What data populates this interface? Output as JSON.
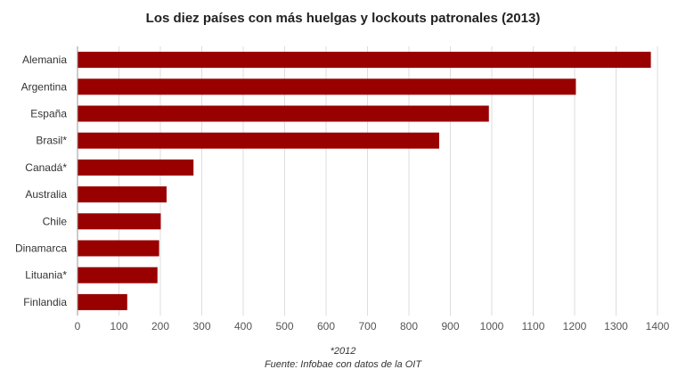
{
  "chart_data": {
    "type": "bar",
    "orientation": "horizontal",
    "title": "Los diez países con más huelgas y lockouts patronales (2013)",
    "categories": [
      "Alemania",
      "Argentina",
      "España",
      "Brasil*",
      "Canadá*",
      "Australia",
      "Chile",
      "Dinamarca",
      "Lituania*",
      "Finlandia"
    ],
    "values": [
      1384,
      1203,
      993,
      873,
      280,
      215,
      201,
      197,
      193,
      120
    ],
    "xlim": [
      0,
      1400
    ],
    "xticks": [
      "0",
      "100",
      "200",
      "300",
      "400",
      "500",
      "600",
      "700",
      "800",
      "900",
      "1000",
      "1100",
      "1200",
      "1300",
      "1400"
    ],
    "grid": true,
    "bar_color": "#990000",
    "grid_color": "#dddddd"
  },
  "footnotes": {
    "note": "*2012",
    "source": "Fuente: Infobae con datos de la OIT"
  }
}
